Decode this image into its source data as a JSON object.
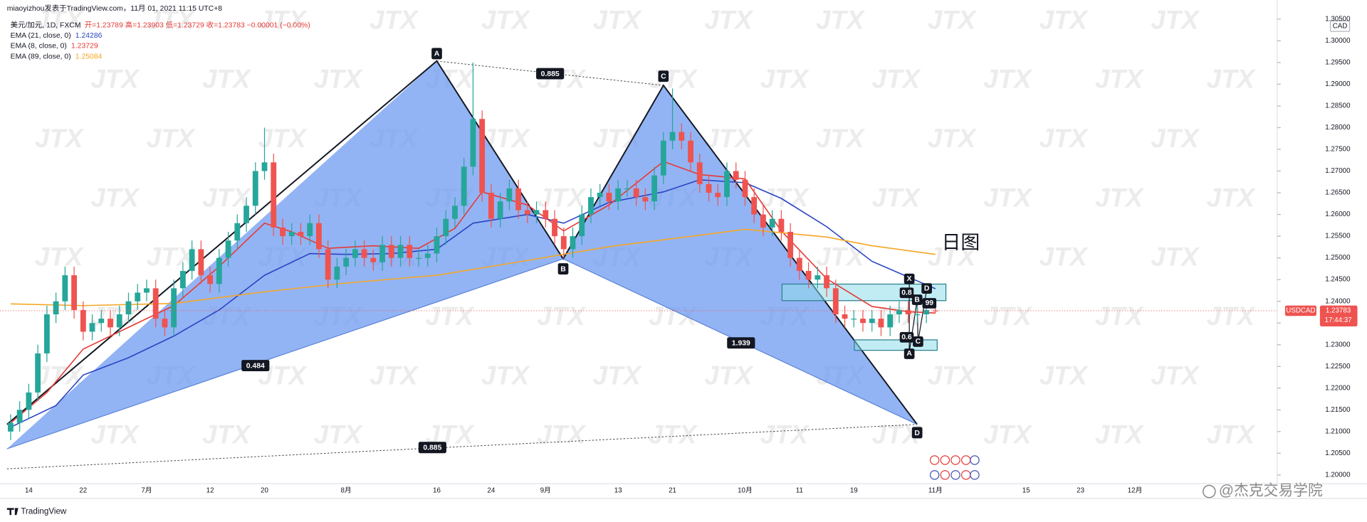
{
  "chart_data": {
    "type": "candlestick",
    "title": "miaoyizhou发表于TradingView.com，11月 01, 2021 11:15 UTC+8",
    "legend_symbol": "美元/加元, 1D, FXCM",
    "legend_ohlc": "开=1.23789  高=1.23903  低=1.23729  收=1.23783  −0.00001 (−0.00%)",
    "currency": "CAD",
    "last_price_label": "1.23783",
    "countdown": "17:44:37",
    "annotation": "日图",
    "watermark": "JTX",
    "footer_brand": "TradingView",
    "footer_author": "@杰克交易学院",
    "pattern_labels": [
      "A",
      "B",
      "C",
      "D"
    ],
    "pattern_ratios": [
      "0.885",
      "1.939",
      "0.484",
      "0.885"
    ],
    "small_pattern_labels": [
      "X",
      "D",
      "B",
      "C",
      "A"
    ],
    "small_pattern_ratios": [
      "0.8",
      "99",
      "0.6"
    ],
    "up_color": "#26a69a",
    "down_color": "#ef5350",
    "grid": false,
    "ylim": [
      1.198,
      1.3094
    ],
    "yticks": [
      {
        "value": 1.2,
        "label": "1.20000"
      },
      {
        "value": 1.205,
        "label": "1.20500"
      },
      {
        "value": 1.21,
        "label": "1.21000"
      },
      {
        "value": 1.215,
        "label": "1.21500"
      },
      {
        "value": 1.22,
        "label": "1.22000"
      },
      {
        "value": 1.225,
        "label": "1.22500"
      },
      {
        "value": 1.23,
        "label": "1.23000"
      },
      {
        "value": 1.235,
        "label": "1.23500"
      },
      {
        "value": 1.24,
        "label": "1.24000"
      },
      {
        "value": 1.245,
        "label": "1.24500"
      },
      {
        "value": 1.25,
        "label": "1.25000"
      },
      {
        "value": 1.255,
        "label": "1.25500"
      },
      {
        "value": 1.26,
        "label": "1.26000"
      },
      {
        "value": 1.265,
        "label": "1.26500"
      },
      {
        "value": 1.27,
        "label": "1.27000"
      },
      {
        "value": 1.275,
        "label": "1.27500"
      },
      {
        "value": 1.28,
        "label": "1.28000"
      },
      {
        "value": 1.285,
        "label": "1.28500"
      },
      {
        "value": 1.29,
        "label": "1.29000"
      },
      {
        "value": 1.295,
        "label": "1.29500"
      },
      {
        "value": 1.3,
        "label": "1.30000"
      },
      {
        "value": 1.305,
        "label": "1.30500"
      }
    ],
    "categories": [
      null,
      null,
      "14",
      null,
      null,
      null,
      null,
      null,
      "22",
      null,
      null,
      null,
      null,
      null,
      null,
      "7月",
      null,
      null,
      null,
      null,
      null,
      null,
      "12",
      null,
      null,
      null,
      null,
      null,
      "20",
      null,
      null,
      null,
      null,
      null,
      null,
      null,
      null,
      "8月",
      null,
      null,
      null,
      null,
      null,
      null,
      null,
      null,
      null,
      "16",
      null,
      null,
      null,
      null,
      null,
      "24",
      null,
      null,
      null,
      null,
      null,
      "9月",
      null,
      null,
      null,
      null,
      null,
      null,
      null,
      "13",
      null,
      null,
      null,
      null,
      null,
      "21",
      null,
      null,
      null,
      null,
      null,
      null,
      null,
      "10月",
      null,
      null,
      null,
      null,
      null,
      "11",
      null,
      null,
      null,
      null,
      null,
      "19",
      null,
      null,
      null,
      null,
      null,
      null,
      null,
      null,
      "11月",
      null,
      null,
      null,
      null,
      null,
      null,
      null,
      null,
      null,
      "15",
      null,
      null,
      null,
      null,
      null,
      "23",
      null,
      null,
      null,
      null,
      null,
      "12月",
      null,
      null,
      null,
      null,
      null,
      null,
      null,
      null,
      null,
      null,
      null,
      null,
      null,
      null,
      null
    ],
    "series": [
      {
        "name": "USDCAD",
        "open": [
          1.21,
          1.212,
          1.215,
          1.219,
          1.228,
          1.237,
          1.24,
          1.246,
          1.238,
          1.233,
          1.235,
          1.236,
          1.234,
          1.237,
          1.24,
          1.242,
          1.243,
          1.236,
          1.234,
          1.243,
          1.247,
          1.252,
          1.246,
          1.244,
          1.25,
          1.254,
          1.258,
          1.262,
          1.27,
          1.272,
          1.257,
          1.255,
          1.256,
          1.255,
          1.258,
          1.252,
          1.245,
          1.248,
          1.25,
          1.252,
          1.25,
          1.249,
          1.253,
          1.25,
          1.253,
          1.25,
          1.25,
          1.251,
          1.255,
          1.259,
          1.262,
          1.271,
          1.282,
          1.265,
          1.259,
          1.263,
          1.266,
          1.261,
          1.26,
          1.261,
          1.259,
          1.255,
          1.252,
          1.255,
          1.26,
          1.264,
          1.265,
          1.263,
          1.266,
          1.266,
          1.264,
          1.263,
          1.269,
          1.277,
          1.279,
          1.277,
          1.272,
          1.267,
          1.265,
          1.264,
          1.27,
          1.268,
          1.264,
          1.26,
          1.257,
          1.259,
          1.256,
          1.25,
          1.247,
          1.245,
          1.246,
          1.243,
          1.237,
          1.236,
          1.236,
          1.235,
          1.236,
          1.234,
          1.237,
          1.238,
          1.237,
          1.237,
          1.23789,
          null,
          null,
          null,
          null,
          null,
          null,
          null,
          null,
          null,
          null,
          null,
          null,
          null,
          null,
          null,
          null,
          null,
          null,
          null,
          null,
          null,
          null,
          null,
          null,
          null,
          null,
          null,
          null,
          null,
          null,
          null,
          null,
          null,
          null,
          null,
          null,
          null
        ],
        "high": [
          1.214,
          1.217,
          1.221,
          1.23,
          1.239,
          1.242,
          1.248,
          1.248,
          1.24,
          1.237,
          1.238,
          1.238,
          1.239,
          1.242,
          1.244,
          1.245,
          1.245,
          1.238,
          1.245,
          1.249,
          1.254,
          1.254,
          1.248,
          1.252,
          1.256,
          1.26,
          1.264,
          1.272,
          1.28,
          1.274,
          1.259,
          1.258,
          1.258,
          1.26,
          1.26,
          1.254,
          1.25,
          1.252,
          1.254,
          1.254,
          1.252,
          1.255,
          1.255,
          1.255,
          1.255,
          1.252,
          1.253,
          1.257,
          1.261,
          1.264,
          1.273,
          1.295,
          1.284,
          1.267,
          1.265,
          1.268,
          1.268,
          1.263,
          1.263,
          1.263,
          1.261,
          1.257,
          1.257,
          1.262,
          1.266,
          1.267,
          1.267,
          1.268,
          1.268,
          1.268,
          1.266,
          1.271,
          1.279,
          1.289,
          1.281,
          1.279,
          1.274,
          1.269,
          1.267,
          1.272,
          1.272,
          1.27,
          1.266,
          1.262,
          1.261,
          1.261,
          1.258,
          1.252,
          1.249,
          1.248,
          1.248,
          1.245,
          1.239,
          1.238,
          1.238,
          1.238,
          1.238,
          1.239,
          1.24,
          1.24,
          1.239,
          1.24,
          1.23903,
          null,
          null,
          null,
          null,
          null,
          null,
          null,
          null,
          null,
          null,
          null,
          null,
          null,
          null,
          null,
          null,
          null,
          null,
          null,
          null,
          null,
          null,
          null,
          null,
          null,
          null,
          null,
          null,
          null,
          null,
          null,
          null,
          null,
          null,
          null,
          null,
          null
        ],
        "low": [
          1.208,
          1.21,
          1.213,
          1.217,
          1.226,
          1.235,
          1.238,
          1.236,
          1.231,
          1.231,
          1.233,
          1.232,
          1.232,
          1.235,
          1.238,
          1.24,
          1.234,
          1.232,
          1.232,
          1.241,
          1.245,
          1.244,
          1.242,
          1.242,
          1.248,
          1.252,
          1.256,
          1.26,
          1.268,
          1.255,
          1.253,
          1.253,
          1.253,
          1.253,
          1.25,
          1.243,
          1.243,
          1.246,
          1.248,
          1.248,
          1.247,
          1.247,
          1.248,
          1.248,
          1.248,
          1.248,
          1.248,
          1.249,
          1.253,
          1.257,
          1.26,
          1.269,
          1.263,
          1.257,
          1.257,
          1.261,
          1.259,
          1.258,
          1.258,
          1.257,
          1.253,
          1.25,
          1.25,
          1.253,
          1.258,
          1.262,
          1.261,
          1.261,
          1.264,
          1.262,
          1.261,
          1.261,
          1.267,
          1.275,
          1.275,
          1.27,
          1.265,
          1.263,
          1.262,
          1.262,
          1.266,
          1.262,
          1.258,
          1.255,
          1.255,
          1.254,
          1.248,
          1.245,
          1.243,
          1.243,
          1.241,
          1.235,
          1.234,
          1.234,
          1.233,
          1.233,
          1.232,
          1.232,
          1.235,
          1.235,
          1.235,
          1.235,
          1.23729,
          null,
          null,
          null,
          null,
          null,
          null,
          null,
          null,
          null,
          null,
          null,
          null,
          null,
          null,
          null,
          null,
          null,
          null,
          null,
          null,
          null,
          null,
          null,
          null,
          null,
          null,
          null,
          null,
          null,
          null,
          null,
          null,
          null,
          null,
          null,
          null,
          null
        ],
        "close": [
          1.212,
          1.215,
          1.219,
          1.228,
          1.237,
          1.24,
          1.246,
          1.238,
          1.233,
          1.235,
          1.236,
          1.234,
          1.237,
          1.24,
          1.242,
          1.243,
          1.236,
          1.234,
          1.243,
          1.247,
          1.252,
          1.246,
          1.244,
          1.25,
          1.254,
          1.258,
          1.262,
          1.27,
          1.272,
          1.257,
          1.255,
          1.256,
          1.255,
          1.258,
          1.252,
          1.245,
          1.248,
          1.25,
          1.252,
          1.25,
          1.249,
          1.253,
          1.25,
          1.253,
          1.25,
          1.25,
          1.251,
          1.255,
          1.259,
          1.262,
          1.271,
          1.282,
          1.265,
          1.259,
          1.263,
          1.266,
          1.261,
          1.26,
          1.261,
          1.259,
          1.255,
          1.252,
          1.255,
          1.26,
          1.264,
          1.265,
          1.263,
          1.266,
          1.266,
          1.264,
          1.263,
          1.269,
          1.277,
          1.279,
          1.277,
          1.272,
          1.267,
          1.265,
          1.264,
          1.27,
          1.268,
          1.264,
          1.26,
          1.257,
          1.259,
          1.256,
          1.25,
          1.247,
          1.245,
          1.246,
          1.243,
          1.237,
          1.236,
          1.236,
          1.235,
          1.236,
          1.234,
          1.237,
          1.238,
          1.237,
          1.237,
          1.238,
          1.23783,
          null,
          null,
          null,
          null,
          null,
          null,
          null,
          null,
          null,
          null,
          null,
          null,
          null,
          null,
          null,
          null,
          null,
          null,
          null,
          null,
          null,
          null,
          null,
          null,
          null,
          null,
          null,
          null,
          null,
          null,
          null,
          null,
          null,
          null,
          null,
          null,
          null
        ]
      }
    ],
    "overlays": [
      {
        "name": "EMA (21, close, 0)",
        "last_label": "1.24286",
        "color": "#2a44c4",
        "x": [
          0,
          5,
          8,
          13,
          18,
          23,
          28,
          33,
          37,
          42,
          47,
          51,
          57,
          61,
          66,
          72,
          76,
          81,
          85,
          90,
          95,
          99,
          102
        ],
        "values": [
          1.211,
          1.216,
          1.223,
          1.227,
          1.232,
          1.238,
          1.246,
          1.251,
          1.2508,
          1.251,
          1.252,
          1.258,
          1.26,
          1.258,
          1.2628,
          1.2652,
          1.268,
          1.2673,
          1.2637,
          1.2572,
          1.2492,
          1.2456,
          1.2429
        ]
      },
      {
        "name": "EMA (8, close, 0)",
        "last_label": "1.23729",
        "color": "#e53935",
        "x": [
          0,
          4,
          8,
          13,
          18,
          23,
          28,
          31,
          35,
          40,
          45,
          49,
          52,
          57,
          61,
          66,
          72,
          76,
          81,
          85,
          90,
          95,
          99,
          102
        ],
        "values": [
          1.212,
          1.219,
          1.229,
          1.234,
          1.239,
          1.248,
          1.258,
          1.256,
          1.2522,
          1.2528,
          1.2522,
          1.2568,
          1.2652,
          1.2622,
          1.2562,
          1.2622,
          1.2722,
          1.2692,
          1.2682,
          1.2562,
          1.2452,
          1.2388,
          1.2376,
          1.2373
        ]
      },
      {
        "name": "EMA (89, close, 0)",
        "last_label": "1.25084",
        "color": "#f5a623",
        "x": [
          0,
          8,
          18,
          28,
          37,
          47,
          57,
          66,
          76,
          81,
          90,
          95,
          102
        ],
        "values": [
          1.2394,
          1.239,
          1.2395,
          1.2422,
          1.2442,
          1.246,
          1.2494,
          1.2526,
          1.2552,
          1.2566,
          1.2548,
          1.2528,
          1.2508
        ]
      }
    ]
  }
}
